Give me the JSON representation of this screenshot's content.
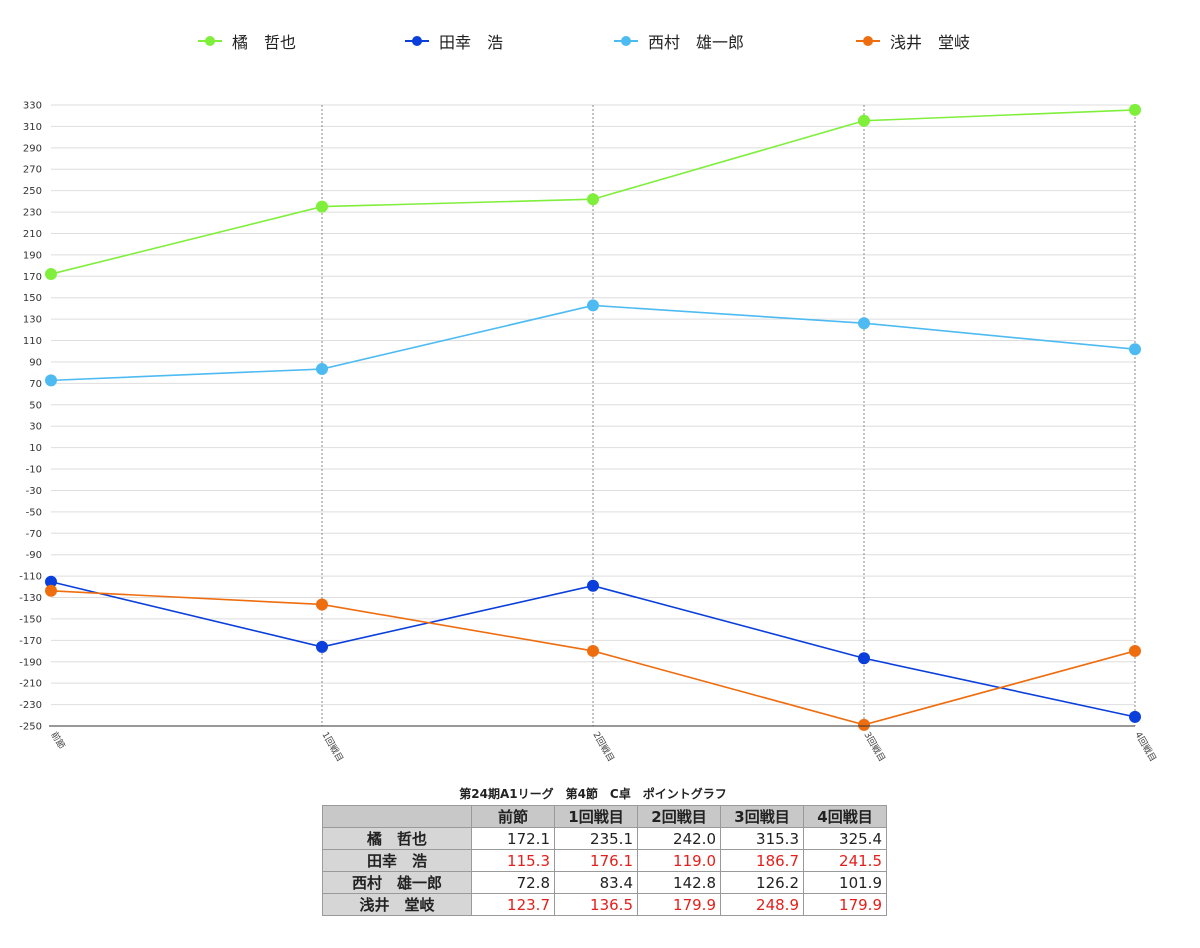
{
  "chart_data": {
    "type": "line",
    "categories": [
      "前節",
      "1回戦目",
      "2回戦目",
      "3回戦目",
      "4回戦目"
    ],
    "ylim": [
      -250,
      330
    ],
    "yticks": [
      330,
      310,
      290,
      270,
      250,
      230,
      210,
      190,
      170,
      150,
      130,
      110,
      90,
      70,
      50,
      30,
      10,
      -10,
      -30,
      -50,
      -70,
      -90,
      -110,
      -130,
      -150,
      -170,
      -190,
      -210,
      -230,
      -250
    ],
    "grid": true,
    "legend_position": "top",
    "series": [
      {
        "name": "橘　哲也",
        "color": "#7fef3c",
        "values": [
          172.1,
          235.1,
          242.0,
          315.3,
          325.4
        ]
      },
      {
        "name": "田幸　浩",
        "color": "#0a3fdc",
        "values": [
          -115.3,
          -176.1,
          -119.0,
          -186.7,
          -241.5
        ]
      },
      {
        "name": "西村　雄一郎",
        "color": "#4dbbf2",
        "values": [
          72.8,
          83.4,
          142.8,
          126.2,
          101.9
        ]
      },
      {
        "name": "浅井　堂岐",
        "color": "#ee6d0f",
        "values": [
          -123.7,
          -136.5,
          -179.9,
          -248.9,
          -179.9
        ]
      }
    ]
  },
  "table": {
    "title": "第24期A1リーグ　第4節　C卓　ポイントグラフ",
    "headers": [
      "前節",
      "1回戦目",
      "2回戦目",
      "3回戦目",
      "4回戦目"
    ],
    "rows": [
      {
        "name": "橘　哲也",
        "values": [
          "172.1",
          "235.1",
          "242.0",
          "315.3",
          "325.4"
        ],
        "negative": false
      },
      {
        "name": "田幸　浩",
        "values": [
          "115.3",
          "176.1",
          "119.0",
          "186.7",
          "241.5"
        ],
        "negative": true
      },
      {
        "name": "西村　雄一郎",
        "values": [
          "72.8",
          "83.4",
          "142.8",
          "126.2",
          "101.9"
        ],
        "negative": false
      },
      {
        "name": "浅井　堂岐",
        "values": [
          "123.7",
          "136.5",
          "179.9",
          "248.9",
          "179.9"
        ],
        "negative": true
      }
    ]
  }
}
